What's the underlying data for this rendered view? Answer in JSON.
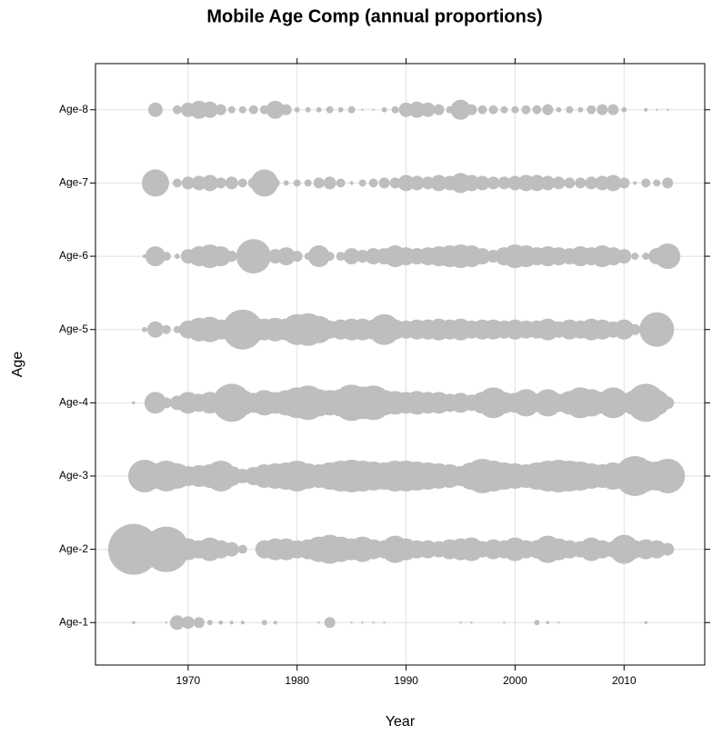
{
  "chart_data": {
    "type": "bubble",
    "title": "Mobile Age Comp (annual proportions)",
    "xlabel": "Year",
    "ylabel": "Age",
    "categories": [
      "Age-1",
      "Age-2",
      "Age-3",
      "Age-4",
      "Age-5",
      "Age-6",
      "Age-7",
      "Age-8"
    ],
    "x": [
      1965,
      1966,
      1967,
      1968,
      1969,
      1970,
      1971,
      1972,
      1973,
      1974,
      1975,
      1976,
      1977,
      1978,
      1979,
      1980,
      1981,
      1982,
      1983,
      1984,
      1985,
      1986,
      1987,
      1988,
      1989,
      1990,
      1991,
      1992,
      1993,
      1994,
      1995,
      1996,
      1997,
      1998,
      1999,
      2000,
      2001,
      2002,
      2003,
      2004,
      2005,
      2006,
      2007,
      2008,
      2009,
      2010,
      2011,
      2012,
      2013,
      2014
    ],
    "values": [
      [
        0.002,
        0,
        0,
        0.001,
        0.044,
        0.034,
        0.025,
        0.006,
        0.004,
        0.003,
        0.003,
        0,
        0.006,
        0.003,
        0,
        0,
        0,
        0.001,
        0.025,
        0,
        0.001,
        0.001,
        0.001,
        0.001,
        0,
        0,
        0,
        0,
        0,
        0,
        0.001,
        0.001,
        0,
        0,
        0.001,
        0,
        0,
        0.006,
        0.002,
        0.001,
        0,
        0,
        0,
        0,
        0,
        0,
        0,
        0.002,
        0,
        0
      ],
      [
        0.543,
        0.156,
        0.1,
        0.433,
        0.136,
        0.1,
        0.069,
        0.117,
        0.069,
        0.044,
        0.017,
        0,
        0.069,
        0.1,
        0.1,
        0.069,
        0.084,
        0.136,
        0.177,
        0.136,
        0.1,
        0.136,
        0.084,
        0.069,
        0.156,
        0.1,
        0.069,
        0.069,
        0.056,
        0.084,
        0.1,
        0.117,
        0.056,
        0.084,
        0.069,
        0.117,
        0.069,
        0.069,
        0.156,
        0.1,
        0.069,
        0.056,
        0.117,
        0.069,
        0.056,
        0.177,
        0.069,
        0.084,
        0.069,
        0.034
      ],
      [
        0,
        0.224,
        0.136,
        0.2,
        0.136,
        0.084,
        0.1,
        0.117,
        0.2,
        0.084,
        0.044,
        0.069,
        0.117,
        0.136,
        0.156,
        0.2,
        0.136,
        0.117,
        0.156,
        0.2,
        0.224,
        0.2,
        0.177,
        0.156,
        0.2,
        0.2,
        0.177,
        0.156,
        0.136,
        0.117,
        0.084,
        0.156,
        0.25,
        0.2,
        0.156,
        0.136,
        0.117,
        0.156,
        0.2,
        0.224,
        0.2,
        0.177,
        0.136,
        0.117,
        0.156,
        0.136,
        0.335,
        0.2,
        0.177,
        0.25
      ],
      [
        0.002,
        0,
        0.1,
        0.025,
        0.044,
        0.1,
        0.069,
        0.1,
        0.1,
        0.305,
        0.136,
        0.084,
        0.136,
        0.1,
        0.136,
        0.2,
        0.25,
        0.156,
        0.136,
        0.156,
        0.277,
        0.224,
        0.25,
        0.136,
        0.117,
        0.1,
        0.117,
        0.1,
        0.1,
        0.069,
        0.084,
        0.056,
        0.1,
        0.2,
        0.1,
        0.084,
        0.156,
        0.069,
        0.156,
        0.069,
        0.117,
        0.2,
        0.156,
        0.1,
        0.2,
        0.084,
        0.136,
        0.305,
        0.136,
        0.034
      ],
      [
        0,
        0.006,
        0.056,
        0.017,
        0.011,
        0.069,
        0.117,
        0.136,
        0.084,
        0.117,
        0.335,
        0.136,
        0.1,
        0.117,
        0.1,
        0.2,
        0.224,
        0.156,
        0.069,
        0.084,
        0.1,
        0.1,
        0.084,
        0.2,
        0.084,
        0.069,
        0.084,
        0.084,
        0.1,
        0.084,
        0.1,
        0.069,
        0.084,
        0.084,
        0.069,
        0.084,
        0.069,
        0.069,
        0.1,
        0.056,
        0.084,
        0.069,
        0.1,
        0.084,
        0.056,
        0.084,
        0.025,
        0,
        0.25,
        0
      ],
      [
        0,
        0.003,
        0.084,
        0.017,
        0.006,
        0.044,
        0.084,
        0.117,
        0.084,
        0.025,
        0.011,
        0.25,
        0.034,
        0.044,
        0.069,
        0.025,
        0.011,
        0.1,
        0.017,
        0.017,
        0.056,
        0.034,
        0.056,
        0.056,
        0.1,
        0.069,
        0.056,
        0.069,
        0.084,
        0.1,
        0.117,
        0.1,
        0.056,
        0.034,
        0.069,
        0.117,
        0.1,
        0.069,
        0.084,
        0.069,
        0.056,
        0.084,
        0.069,
        0.1,
        0.069,
        0.044,
        0.011,
        0.011,
        0.056,
        0.136
      ],
      [
        0,
        0,
        0.156,
        0.006,
        0.017,
        0.034,
        0.044,
        0.056,
        0.025,
        0.034,
        0.017,
        0.025,
        0.156,
        0.017,
        0.006,
        0.011,
        0.011,
        0.025,
        0.034,
        0.017,
        0.003,
        0.011,
        0.017,
        0.025,
        0.025,
        0.056,
        0.044,
        0.034,
        0.056,
        0.044,
        0.084,
        0.056,
        0.044,
        0.034,
        0.034,
        0.044,
        0.056,
        0.056,
        0.044,
        0.034,
        0.025,
        0.025,
        0.034,
        0.044,
        0.056,
        0.025,
        0.003,
        0.017,
        0.011,
        0.025
      ],
      [
        0,
        0,
        0.044,
        0,
        0.017,
        0.044,
        0.069,
        0.056,
        0.025,
        0.011,
        0.011,
        0.017,
        0.017,
        0.069,
        0.025,
        0.006,
        0.006,
        0.006,
        0.011,
        0.006,
        0.011,
        0.001,
        0.001,
        0.006,
        0.011,
        0.044,
        0.056,
        0.044,
        0.025,
        0.011,
        0.084,
        0.025,
        0.017,
        0.017,
        0.011,
        0.011,
        0.017,
        0.017,
        0.025,
        0.006,
        0.011,
        0.006,
        0.017,
        0.025,
        0.025,
        0.006,
        0,
        0.003,
        0.001,
        0.001
      ]
    ],
    "color": "#bebebe",
    "xlim": [
      1961.5,
      2017.4
    ],
    "xticks": [
      1970,
      1980,
      1990,
      2000,
      2010
    ],
    "grid": true
  }
}
